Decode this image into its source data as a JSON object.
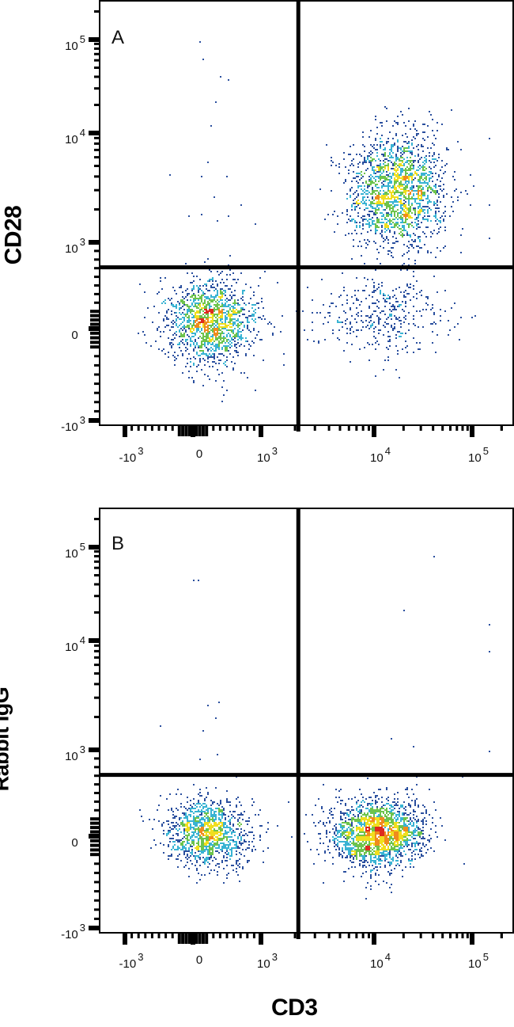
{
  "chart_data": [
    {
      "type": "scatter",
      "panel_label": "A",
      "ylabel": "CD28",
      "xlabel": "",
      "scale": "biexponential",
      "x_ticks": [
        {
          "value": -1000,
          "base": "-10",
          "exp": "3"
        },
        {
          "value": 0,
          "base": "0",
          "exp": ""
        },
        {
          "value": 1000,
          "base": "10",
          "exp": "3"
        },
        {
          "value": 10000,
          "base": "10",
          "exp": "4"
        },
        {
          "value": 100000,
          "base": "10",
          "exp": "5"
        }
      ],
      "y_ticks": [
        {
          "value": -1000,
          "base": "-10",
          "exp": "3"
        },
        {
          "value": 0,
          "base": "0",
          "exp": ""
        },
        {
          "value": 1000,
          "base": "10",
          "exp": "3"
        },
        {
          "value": 10000,
          "base": "10",
          "exp": "4"
        },
        {
          "value": 100000,
          "base": "10",
          "exp": "5"
        }
      ],
      "quadrant_gate": {
        "x": 2140,
        "y": 710
      },
      "populations": [
        {
          "center_x": 240,
          "center_y": 90,
          "spread_x_decades": 0.33,
          "spread_y_decades": 0.25,
          "events": 1500
        },
        {
          "center_x": 17000,
          "center_y": 2950,
          "spread_x_decades": 0.24,
          "spread_y_decades": 0.26,
          "events": 1900
        },
        {
          "center_x": 12600,
          "center_y": 150,
          "spread_x_decades": 0.33,
          "spread_y_decades": 0.22,
          "events": 380
        }
      ],
      "outliers": [
        [
          100,
          95000
        ],
        [
          150,
          62000
        ],
        [
          400,
          40000
        ],
        [
          520,
          37000
        ],
        [
          330,
          22000
        ],
        [
          260,
          12000
        ],
        [
          200,
          5500
        ],
        [
          -350,
          4200
        ],
        [
          110,
          4000
        ],
        [
          480,
          4000
        ],
        [
          300,
          2600
        ],
        [
          120,
          1800
        ],
        [
          520,
          1750
        ],
        [
          360,
          1600
        ],
        [
          -60,
          1750
        ],
        [
          700,
          2200
        ],
        [
          900,
          1500
        ],
        [
          150000,
          9000
        ],
        [
          95000,
          4200
        ],
        [
          150000,
          2200
        ],
        [
          150000,
          1100
        ],
        [
          85000,
          3000
        ],
        [
          60000,
          18000
        ],
        [
          90000,
          700
        ]
      ],
      "density_colors": [
        "#2a4f9e",
        "#39b3d3",
        "#6dc34c",
        "#f0de1f",
        "#f08b1d",
        "#de2a1f"
      ]
    },
    {
      "type": "scatter",
      "panel_label": "B",
      "ylabel": "Rabbit IgG",
      "xlabel": "CD3",
      "scale": "biexponential",
      "x_ticks": [
        {
          "value": -1000,
          "base": "-10",
          "exp": "3"
        },
        {
          "value": 0,
          "base": "0",
          "exp": ""
        },
        {
          "value": 1000,
          "base": "10",
          "exp": "3"
        },
        {
          "value": 10000,
          "base": "10",
          "exp": "4"
        },
        {
          "value": 100000,
          "base": "10",
          "exp": "5"
        }
      ],
      "y_ticks": [
        {
          "value": -1000,
          "base": "-10",
          "exp": "3"
        },
        {
          "value": 0,
          "base": "0",
          "exp": ""
        },
        {
          "value": 1000,
          "base": "10",
          "exp": "3"
        },
        {
          "value": 10000,
          "base": "10",
          "exp": "4"
        },
        {
          "value": 100000,
          "base": "10",
          "exp": "5"
        }
      ],
      "quadrant_gate": {
        "x": 2140,
        "y": 710
      },
      "populations": [
        {
          "center_x": 210,
          "center_y": 50,
          "spread_x_decades": 0.3,
          "spread_y_decades": 0.19,
          "events": 1300
        },
        {
          "center_x": 11200,
          "center_y": 50,
          "spread_x_decades": 0.22,
          "spread_y_decades": 0.19,
          "events": 2100
        }
      ],
      "outliers": [
        [
          0,
          45000
        ],
        [
          60,
          45000
        ],
        [
          40000,
          80000
        ],
        [
          20000,
          21000
        ],
        [
          150000,
          15000
        ],
        [
          150000,
          8000
        ],
        [
          220,
          2600
        ],
        [
          320,
          2000
        ],
        [
          380,
          2800
        ],
        [
          -500,
          1700
        ],
        [
          15000,
          1300
        ],
        [
          25000,
          1100
        ],
        [
          150000,
          1000
        ],
        [
          80000,
          700
        ],
        [
          150,
          1500
        ],
        [
          100,
          900
        ],
        [
          350,
          950
        ]
      ],
      "density_colors": [
        "#2a4f9e",
        "#39b3d3",
        "#6dc34c",
        "#f0de1f",
        "#f08b1d",
        "#de2a1f"
      ]
    }
  ]
}
